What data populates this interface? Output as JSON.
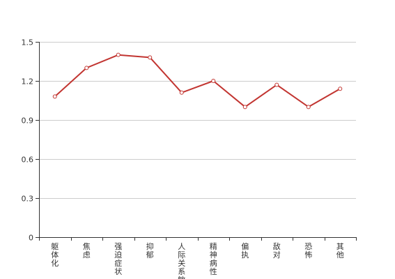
{
  "chart_data": {
    "type": "line",
    "categories": [
      "躯体化",
      "焦虑",
      "强迫症状",
      "抑郁",
      "人际关系敏感",
      "精神病性",
      "偏执",
      "敌对",
      "恐怖",
      "其他"
    ],
    "series": [
      {
        "values": [
          1.08,
          1.3,
          1.4,
          1.38,
          1.11,
          1.2,
          1.0,
          1.17,
          1.0,
          1.14
        ]
      }
    ],
    "yticks": [
      "0",
      "0.3",
      "0.6",
      "0.9",
      "1.2",
      "1.5"
    ],
    "ylim": [
      0,
      1.5
    ],
    "grid": true,
    "line_color": "#c23531",
    "grid_color": "#cccccc",
    "axis_color": "#333333"
  }
}
